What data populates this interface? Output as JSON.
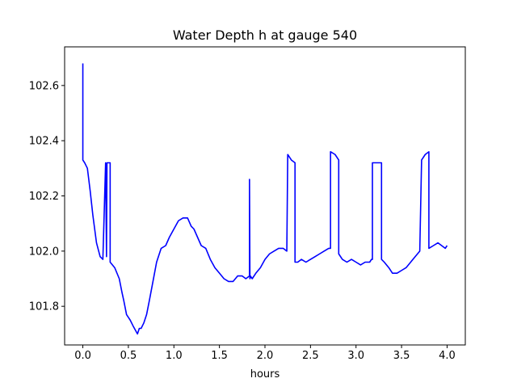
{
  "chart_data": {
    "type": "line",
    "title": "Water Depth h at gauge 540",
    "xlabel": "hours",
    "ylabel": "",
    "xlim": [
      -0.2,
      4.2
    ],
    "ylim": [
      101.66,
      102.74
    ],
    "grid": false,
    "x_ticks": [
      0.0,
      0.5,
      1.0,
      1.5,
      2.0,
      2.5,
      3.0,
      3.5,
      4.0
    ],
    "x_tick_labels": [
      "0.0",
      "0.5",
      "1.0",
      "1.5",
      "2.0",
      "2.5",
      "3.0",
      "3.5",
      "4.0"
    ],
    "y_ticks": [
      101.8,
      102.0,
      102.2,
      102.4,
      102.6
    ],
    "y_tick_labels": [
      "101.8",
      "102.0",
      "102.2",
      "102.4",
      "102.6"
    ],
    "series": [
      {
        "color": "#0000ff",
        "x": [
          0.0,
          0.0,
          0.02,
          0.05,
          0.08,
          0.11,
          0.15,
          0.19,
          0.22,
          0.25,
          0.26,
          0.265,
          0.27,
          0.3,
          0.3,
          0.35,
          0.4,
          0.43,
          0.45,
          0.48,
          0.5,
          0.52,
          0.55,
          0.6,
          0.62,
          0.64,
          0.67,
          0.7,
          0.73,
          0.77,
          0.81,
          0.86,
          0.91,
          0.95,
          1.0,
          1.05,
          1.1,
          1.15,
          1.19,
          1.22,
          1.26,
          1.3,
          1.35,
          1.4,
          1.45,
          1.5,
          1.55,
          1.6,
          1.65,
          1.7,
          1.75,
          1.79,
          1.83,
          1.83,
          1.835,
          1.84,
          1.86,
          1.9,
          1.95,
          2.0,
          2.05,
          2.1,
          2.15,
          2.2,
          2.24,
          2.25,
          2.25,
          2.29,
          2.33,
          2.33,
          2.36,
          2.4,
          2.45,
          2.5,
          2.55,
          2.6,
          2.65,
          2.7,
          2.72,
          2.72,
          2.77,
          2.81,
          2.81,
          2.85,
          2.9,
          2.95,
          3.0,
          3.05,
          3.1,
          3.15,
          3.17,
          3.18,
          3.18,
          3.22,
          3.26,
          3.28,
          3.28,
          3.31,
          3.36,
          3.4,
          3.45,
          3.5,
          3.55,
          3.6,
          3.65,
          3.7,
          3.72,
          3.72,
          3.76,
          3.8,
          3.8,
          3.85,
          3.9,
          3.94,
          3.98,
          4.0
        ],
        "y": [
          102.68,
          102.33,
          102.32,
          102.3,
          102.22,
          102.13,
          102.03,
          101.98,
          101.97,
          102.32,
          101.98,
          102.32,
          102.32,
          102.32,
          101.96,
          101.94,
          101.9,
          101.85,
          101.82,
          101.77,
          101.76,
          101.75,
          101.73,
          101.7,
          101.72,
          101.72,
          101.74,
          101.77,
          101.82,
          101.89,
          101.96,
          102.01,
          102.02,
          102.05,
          102.08,
          102.11,
          102.12,
          102.12,
          102.09,
          102.08,
          102.05,
          102.02,
          102.01,
          101.97,
          101.94,
          101.92,
          101.9,
          101.89,
          101.89,
          101.91,
          101.91,
          101.9,
          101.91,
          102.26,
          101.9,
          101.91,
          101.9,
          101.92,
          101.94,
          101.97,
          101.99,
          102.0,
          102.01,
          102.01,
          102.0,
          102.35,
          102.35,
          102.33,
          102.32,
          101.96,
          101.96,
          101.97,
          101.96,
          101.97,
          101.98,
          101.99,
          102.0,
          102.01,
          102.01,
          102.36,
          102.35,
          102.33,
          101.99,
          101.97,
          101.96,
          101.97,
          101.96,
          101.95,
          101.96,
          101.96,
          101.97,
          101.97,
          102.32,
          102.32,
          102.32,
          102.32,
          101.97,
          101.96,
          101.94,
          101.92,
          101.92,
          101.93,
          101.94,
          101.96,
          101.98,
          102.0,
          102.33,
          102.33,
          102.35,
          102.36,
          102.01,
          102.02,
          102.03,
          102.02,
          102.01,
          102.02
        ]
      }
    ]
  }
}
